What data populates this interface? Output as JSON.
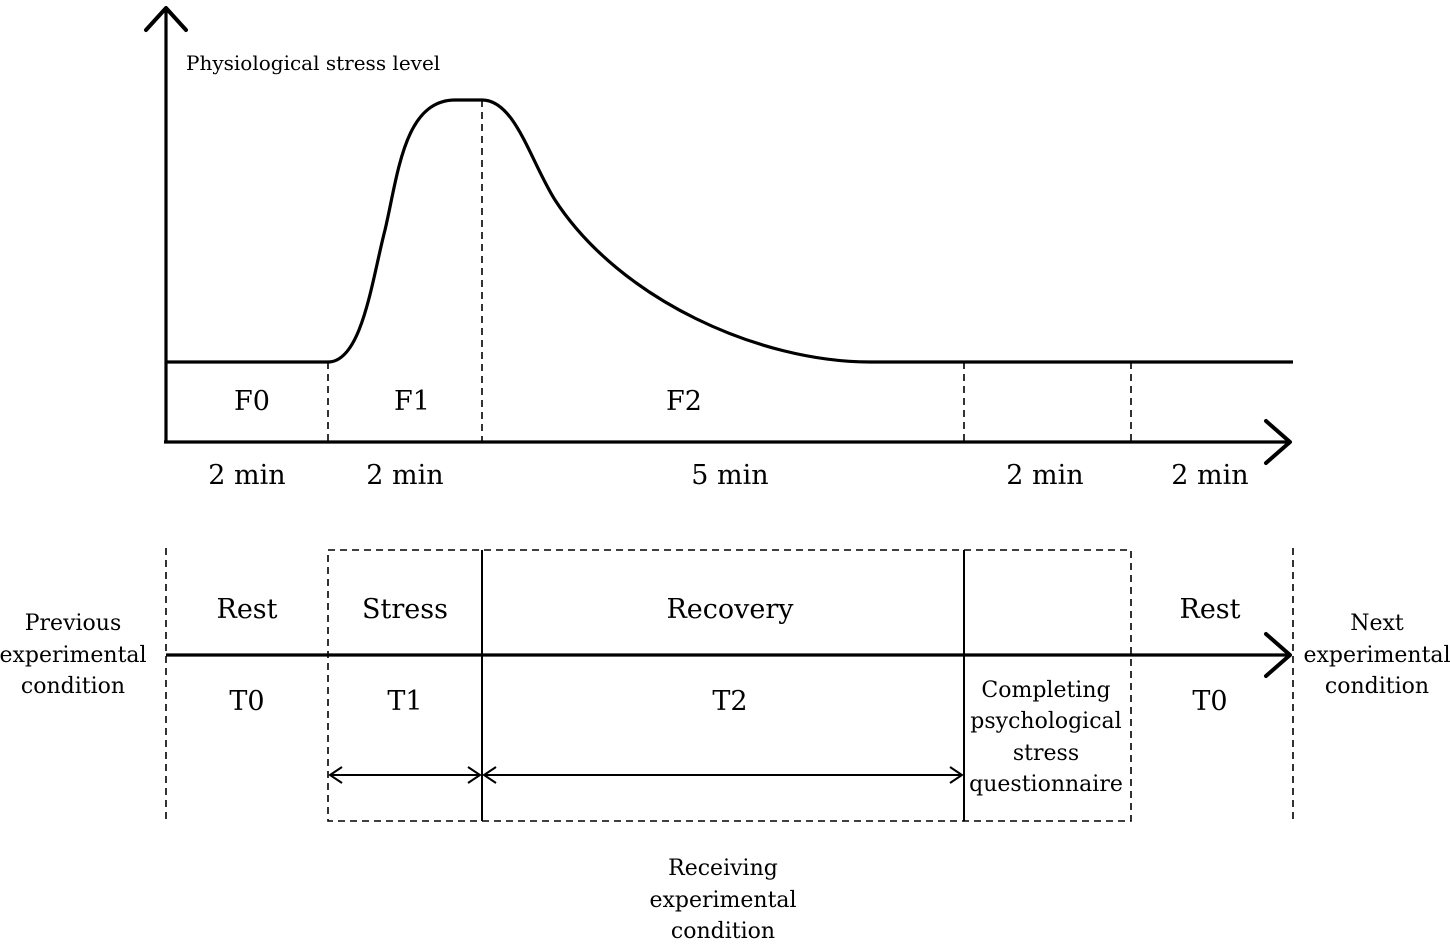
{
  "diagram": {
    "y_axis_label": "Physiological stress level",
    "phase_labels": [
      "F0",
      "F1",
      "F2"
    ],
    "durations": [
      "2 min",
      "2 min",
      "5 min",
      "2 min",
      "2 min"
    ],
    "timeline": {
      "left_label": [
        "Previous",
        "experimental",
        "condition"
      ],
      "right_label": [
        "Next",
        "experimental",
        "condition"
      ],
      "top_labels": [
        "Rest",
        "Stress",
        "Recovery",
        "Rest"
      ],
      "bottom_labels": [
        "T0",
        "T1",
        "T2",
        "T0"
      ],
      "questionnaire_label": [
        "Completing",
        "psychological",
        "stress",
        "questionnaire"
      ],
      "receiving_label": [
        "Receiving",
        "experimental",
        "condition"
      ]
    }
  }
}
